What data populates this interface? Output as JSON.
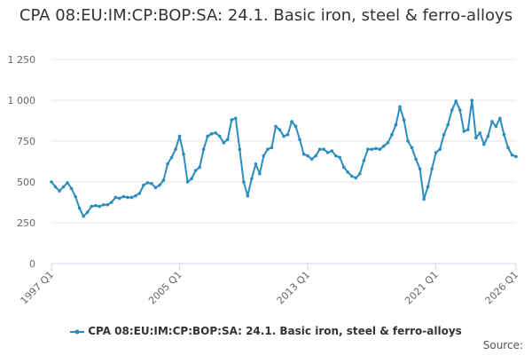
{
  "chart_data": {
    "type": "line",
    "title": "CPA 08:EU:IM:CP:BOP:SA: 24.1. Basic iron, steel & ferro-alloys",
    "xlabel": "",
    "ylabel": "",
    "ylim": [
      0,
      1250
    ],
    "yticks": [
      0,
      250,
      500,
      750,
      1000,
      1250
    ],
    "ytick_labels": [
      "0",
      "250",
      "500",
      "750",
      "1 000",
      "1 250"
    ],
    "x_tick_labels": [
      "1997 Q1",
      "2005 Q1",
      "2013 Q1",
      "2021 Q1",
      "2026 Q1"
    ],
    "x_tick_indices": [
      0,
      32,
      64,
      96,
      116
    ],
    "grid": true,
    "legend_position": "bottom",
    "series": [
      {
        "name": "CPA 08:EU:IM:CP:BOP:SA: 24.1. Basic iron, steel & ferro-alloys",
        "color": "#2B8CBE",
        "values": [
          500,
          470,
          445,
          470,
          495,
          460,
          410,
          340,
          290,
          315,
          350,
          355,
          350,
          360,
          360,
          375,
          405,
          400,
          410,
          405,
          405,
          415,
          430,
          480,
          495,
          490,
          465,
          480,
          510,
          610,
          650,
          700,
          780,
          670,
          500,
          520,
          570,
          590,
          700,
          780,
          795,
          800,
          780,
          740,
          760,
          880,
          890,
          700,
          500,
          415,
          520,
          610,
          550,
          660,
          700,
          710,
          840,
          820,
          780,
          790,
          870,
          840,
          760,
          670,
          660,
          640,
          660,
          700,
          700,
          680,
          690,
          660,
          650,
          590,
          560,
          535,
          525,
          550,
          630,
          700,
          700,
          705,
          700,
          720,
          740,
          790,
          850,
          960,
          880,
          750,
          710,
          640,
          580,
          395,
          470,
          580,
          680,
          700,
          790,
          850,
          940,
          995,
          940,
          810,
          820,
          1000,
          770,
          800,
          730,
          780,
          870,
          840,
          890,
          790,
          710,
          665,
          655
        ]
      }
    ],
    "source_label": "Source:"
  }
}
